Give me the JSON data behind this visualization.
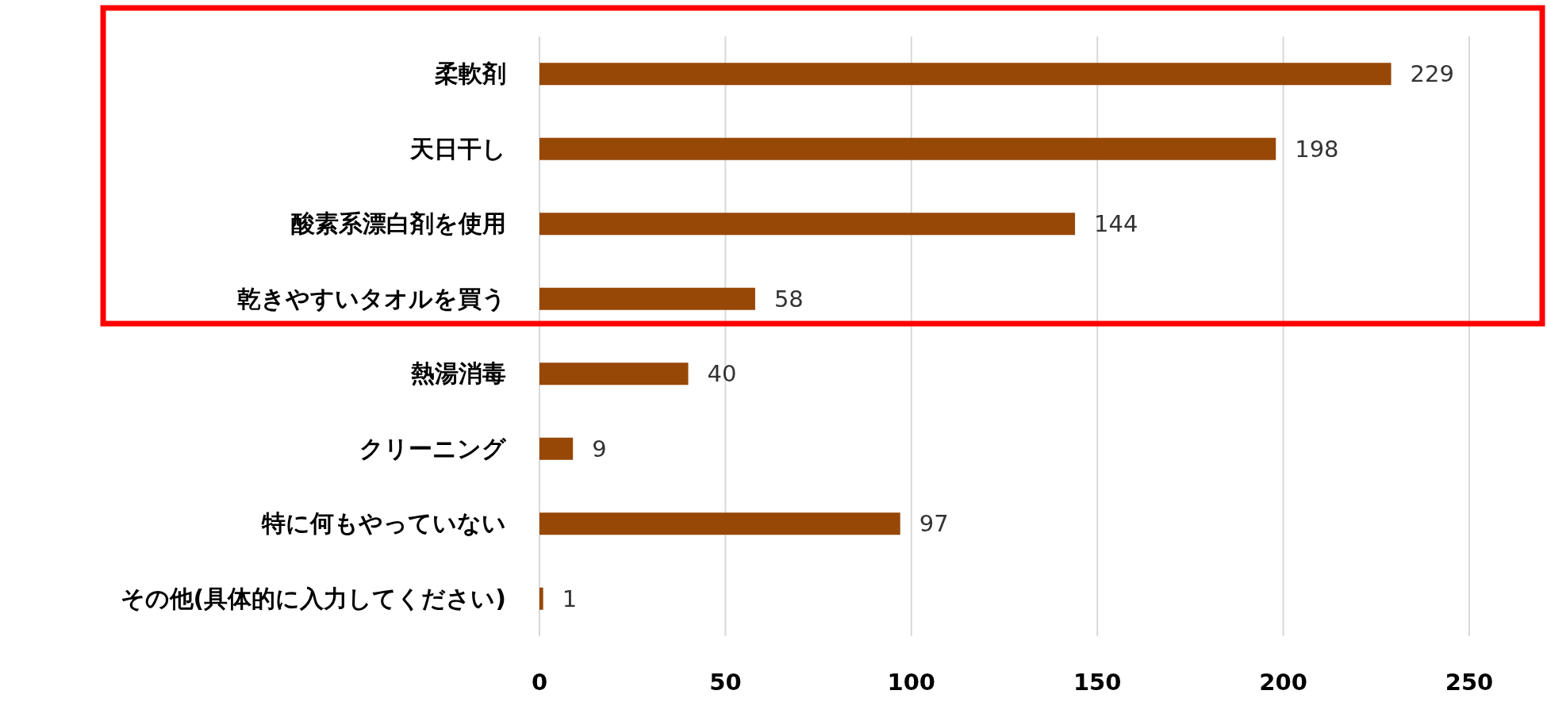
{
  "chart_data": {
    "type": "bar",
    "orientation": "horizontal",
    "categories": [
      "柔軟剤",
      "天日干し",
      "酸素系漂白剤を使用",
      "乾きやすいタオルを買う",
      "熱湯消毒",
      "クリーニング",
      "特に何もやっていない",
      "その他(具体的に入力してください)"
    ],
    "values": [
      229,
      198,
      144,
      58,
      40,
      9,
      97,
      1
    ],
    "color": "#974706",
    "xlim": [
      0,
      250
    ],
    "xticks": [
      0,
      50,
      100,
      150,
      200,
      250
    ],
    "grid": "x",
    "data_labels": true
  }
}
